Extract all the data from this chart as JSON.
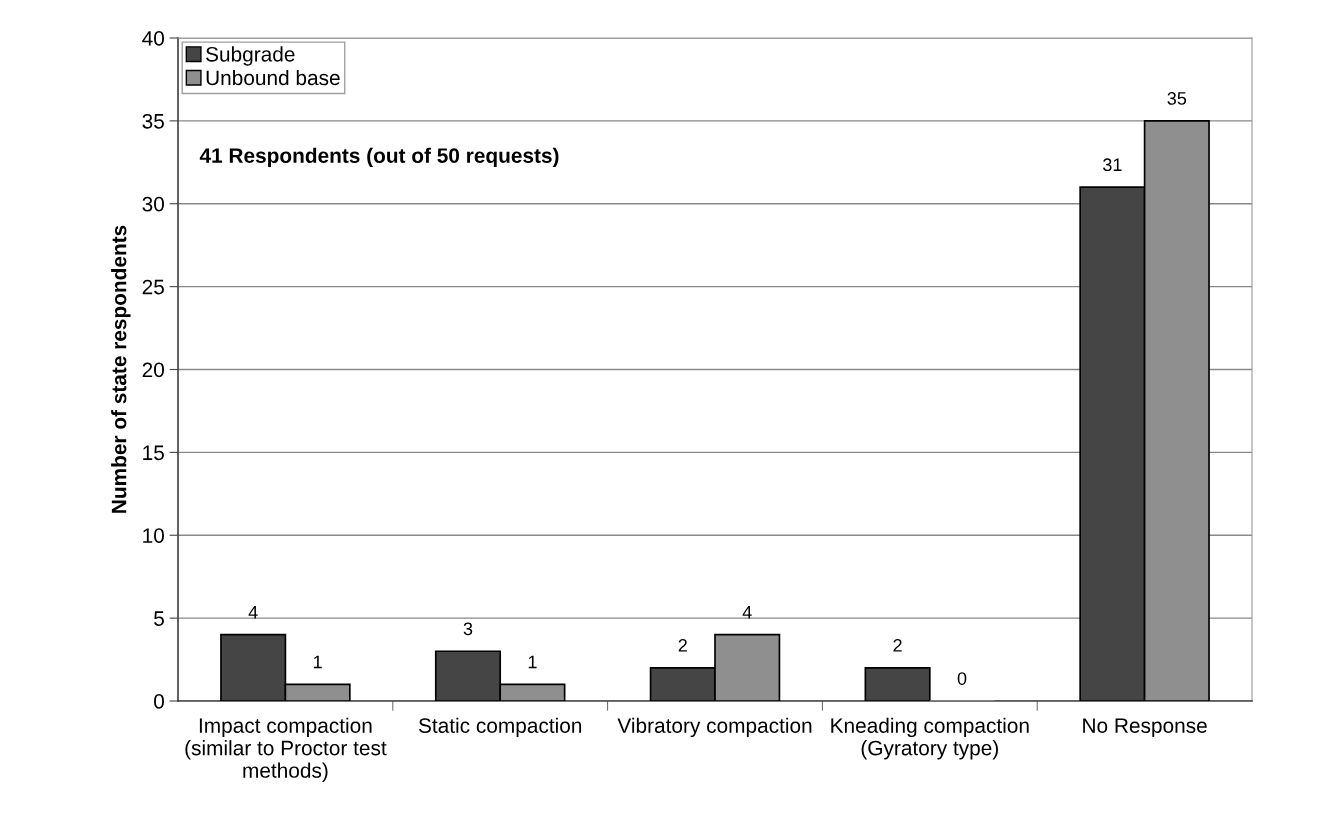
{
  "chart_data": {
    "type": "bar",
    "categories": [
      "Impact compaction\n(similar to Proctor test\nmethods)",
      "Static compaction",
      "Vibratory compaction",
      "Kneading compaction\n(Gyratory type)",
      "No Response"
    ],
    "series": [
      {
        "name": "Subgrade",
        "color": "#454545",
        "values": [
          4,
          3,
          2,
          2,
          31
        ]
      },
      {
        "name": "Unbound base",
        "color": "#8f8f8f",
        "values": [
          1,
          1,
          4,
          0,
          35
        ]
      }
    ],
    "ylabel": "Number of state respondents",
    "annotations": [
      "41 Respondents (out of 50 requests)"
    ],
    "ylim": [
      0,
      40
    ],
    "yticks": [
      0,
      5,
      10,
      15,
      20,
      25,
      30,
      35,
      40
    ],
    "grid": "y",
    "legend": "top left",
    "data_labels": true
  }
}
